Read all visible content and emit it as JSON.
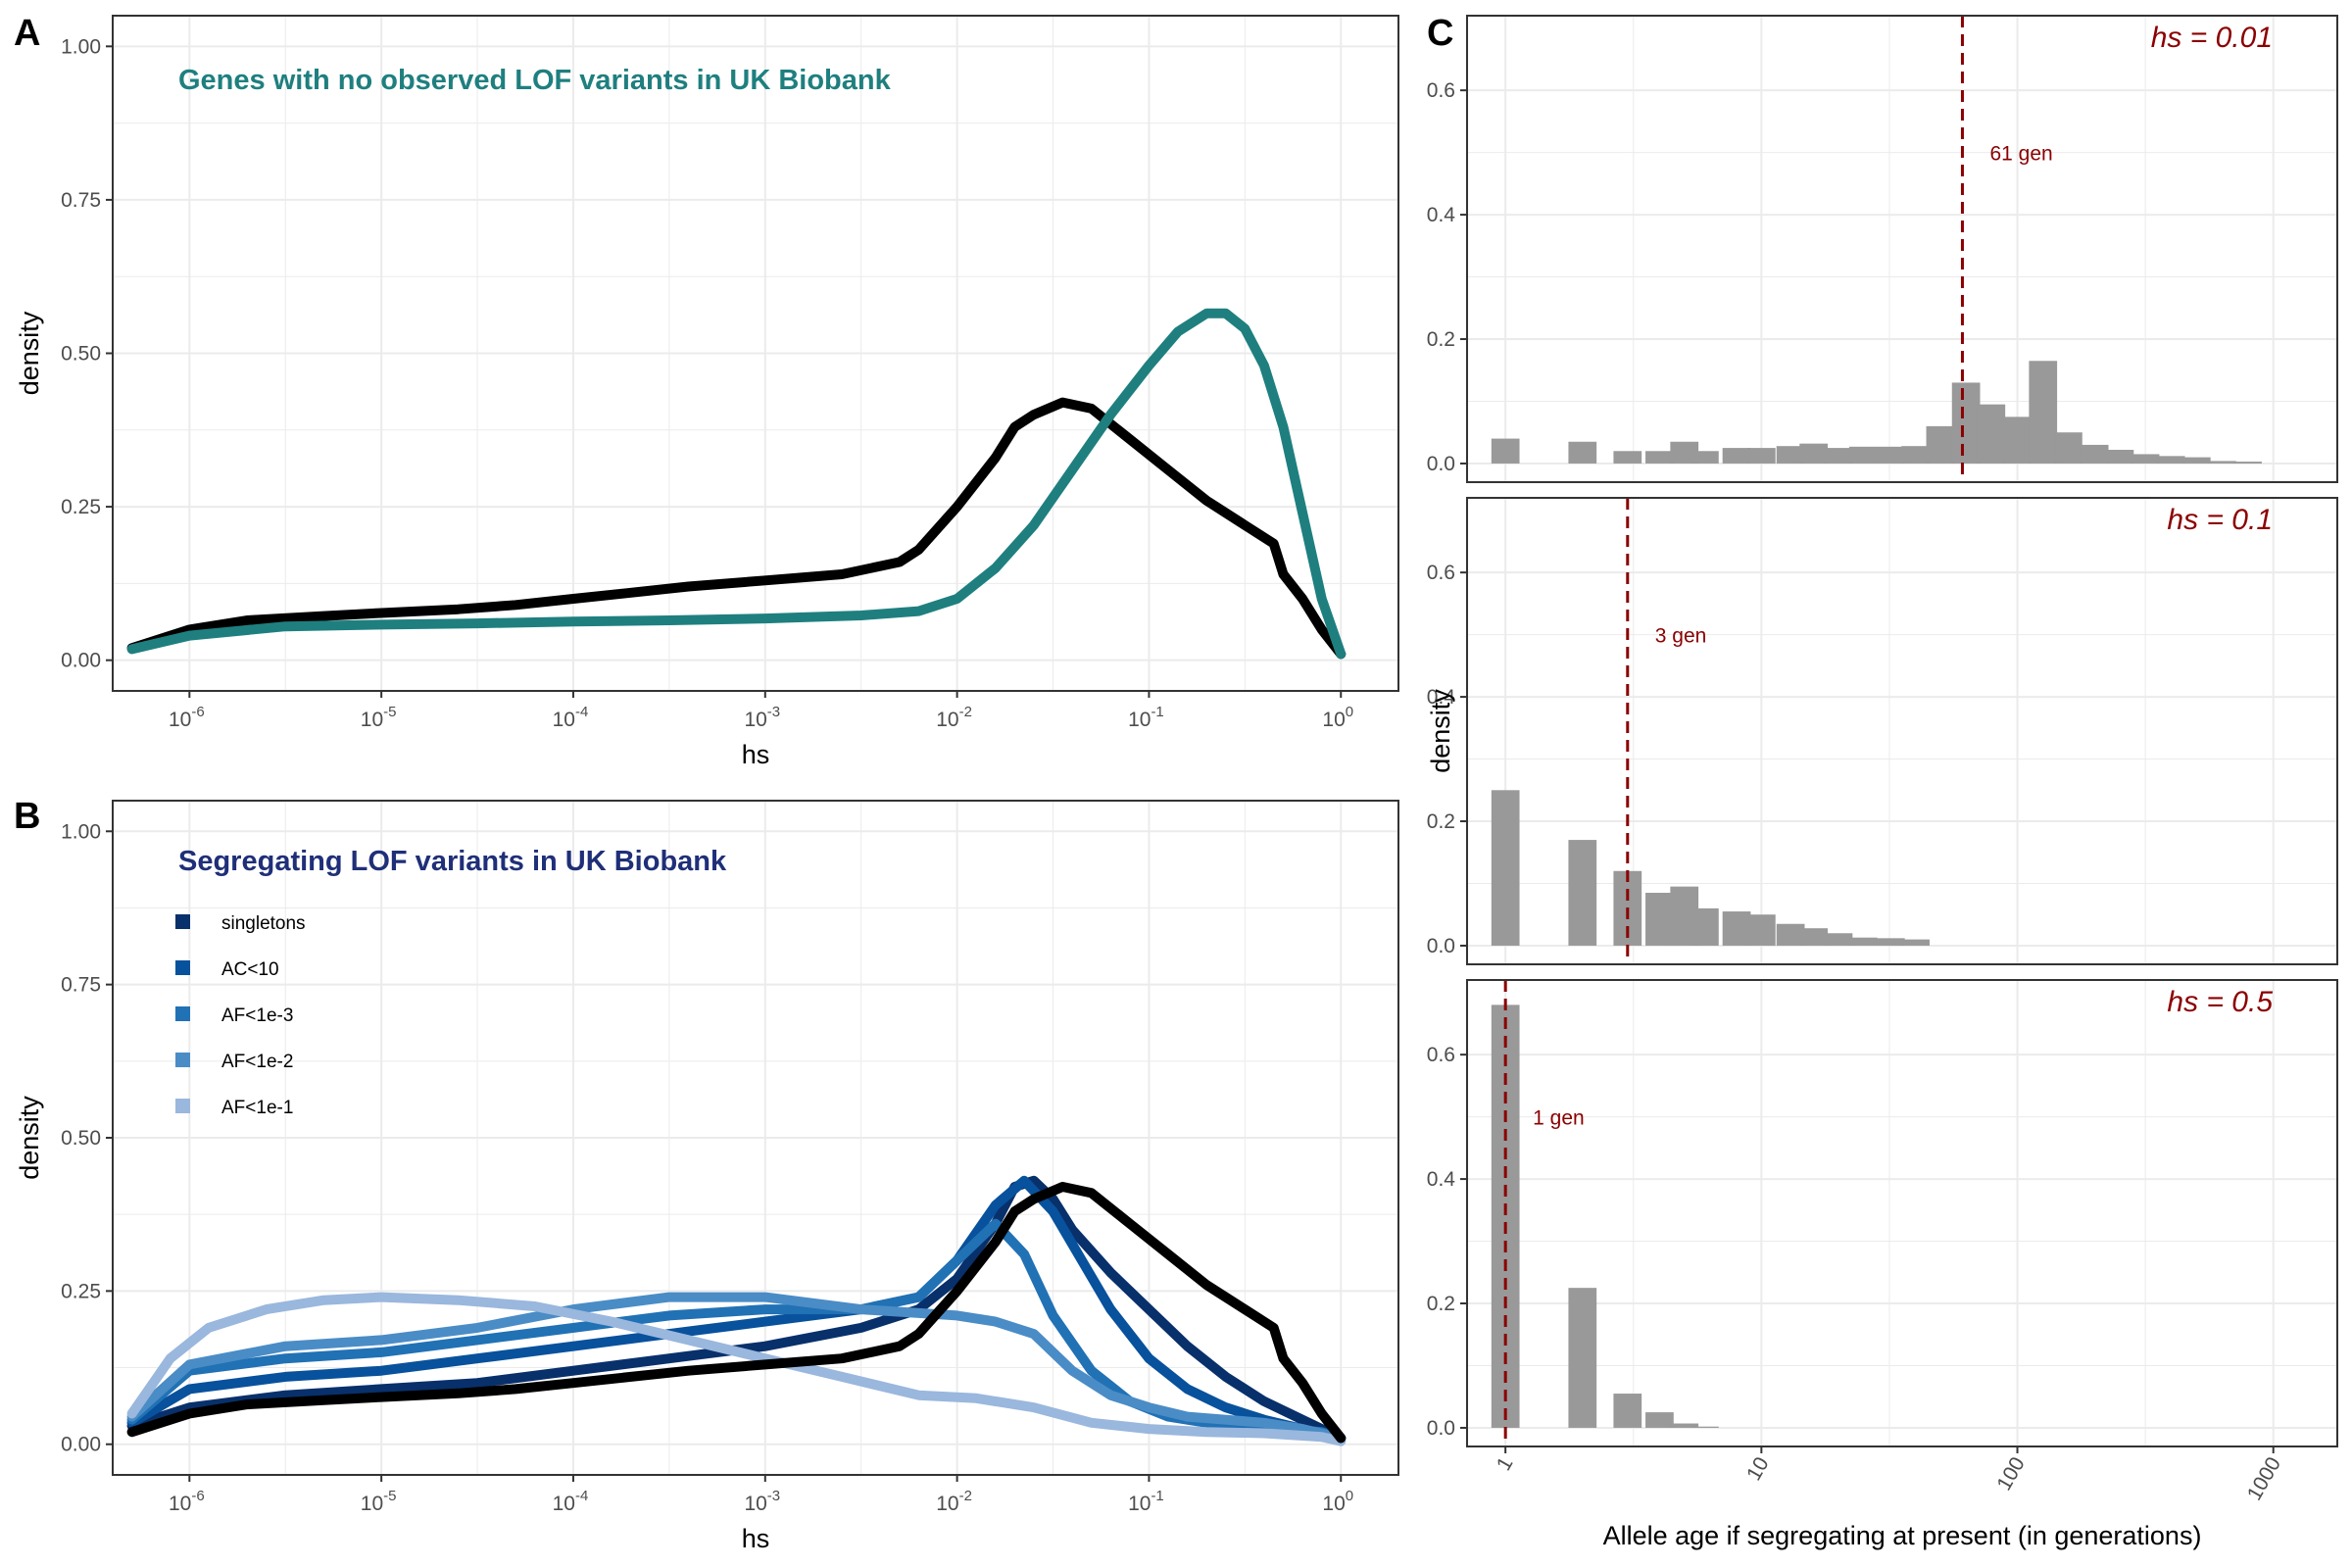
{
  "colors": {
    "black": "#000000",
    "teal": "#1f7f7f",
    "navy": "#1f2f78",
    "dark_red": "#8b0000",
    "bar_gray": "#999999",
    "grid": "#ebebeb",
    "blues": [
      "#08306b",
      "#08519c",
      "#2171b5",
      "#4a8cc6",
      "#9ab7dd"
    ]
  },
  "chart_data": [
    {
      "panel": "A",
      "type": "line",
      "annotation": "Genes with no observed LOF variants in UK Biobank",
      "xlabel": "hs",
      "ylabel": "density",
      "x_scale": "log10",
      "xlim_log10": [
        -6.4,
        0.3
      ],
      "x_ticks": [
        {
          "base": "10",
          "exp": "-6"
        },
        {
          "base": "10",
          "exp": "-5"
        },
        {
          "base": "10",
          "exp": "-4"
        },
        {
          "base": "10",
          "exp": "-3"
        },
        {
          "base": "10",
          "exp": "-2"
        },
        {
          "base": "10",
          "exp": "-1"
        },
        {
          "base": "10",
          "exp": "0"
        }
      ],
      "ylim": [
        -0.05,
        1.05
      ],
      "y_ticks": [
        "0.00",
        "0.25",
        "0.50",
        "0.75",
        "1.00"
      ],
      "grid": true,
      "series": [
        {
          "color": "black",
          "x_log10": [
            -6.3,
            -6.0,
            -5.7,
            -5.3,
            -5.0,
            -4.6,
            -4.3,
            -4.0,
            -3.7,
            -3.4,
            -3.0,
            -2.6,
            -2.3,
            -2.2,
            -2.0,
            -1.8,
            -1.7,
            -1.6,
            -1.45,
            -1.3,
            -1.1,
            -0.9,
            -0.7,
            -0.5,
            -0.35,
            -0.3,
            -0.2,
            -0.1,
            0.0
          ],
          "y": [
            0.02,
            0.05,
            0.065,
            0.072,
            0.077,
            0.083,
            0.09,
            0.1,
            0.11,
            0.12,
            0.13,
            0.14,
            0.16,
            0.18,
            0.25,
            0.33,
            0.38,
            0.4,
            0.42,
            0.41,
            0.36,
            0.31,
            0.26,
            0.22,
            0.19,
            0.14,
            0.1,
            0.05,
            0.01
          ]
        },
        {
          "color": "teal",
          "x_log10": [
            -6.3,
            -6.0,
            -5.5,
            -5.0,
            -4.5,
            -4.0,
            -3.5,
            -3.0,
            -2.5,
            -2.2,
            -2.0,
            -1.8,
            -1.6,
            -1.4,
            -1.2,
            -1.0,
            -0.85,
            -0.7,
            -0.6,
            -0.5,
            -0.4,
            -0.3,
            -0.2,
            -0.1,
            0.0
          ],
          "y": [
            0.018,
            0.04,
            0.055,
            0.058,
            0.06,
            0.063,
            0.065,
            0.068,
            0.073,
            0.08,
            0.1,
            0.15,
            0.22,
            0.31,
            0.4,
            0.48,
            0.535,
            0.565,
            0.565,
            0.54,
            0.48,
            0.38,
            0.24,
            0.1,
            0.01
          ]
        }
      ]
    },
    {
      "panel": "B",
      "type": "line",
      "annotation": "Segregating LOF variants in UK Biobank",
      "xlabel": "hs",
      "ylabel": "density",
      "x_scale": "log10",
      "xlim_log10": [
        -6.4,
        0.3
      ],
      "x_ticks": [
        {
          "base": "10",
          "exp": "-6"
        },
        {
          "base": "10",
          "exp": "-5"
        },
        {
          "base": "10",
          "exp": "-4"
        },
        {
          "base": "10",
          "exp": "-3"
        },
        {
          "base": "10",
          "exp": "-2"
        },
        {
          "base": "10",
          "exp": "-1"
        },
        {
          "base": "10",
          "exp": "0"
        }
      ],
      "ylim": [
        -0.05,
        1.05
      ],
      "y_ticks": [
        "0.00",
        "0.25",
        "0.50",
        "0.75",
        "1.00"
      ],
      "grid": true,
      "legend_position": "top-left",
      "legend": [
        "singletons",
        "AC<10",
        "AF<1e-3",
        "AF<1e-2",
        "AF<1e-1"
      ],
      "series": [
        {
          "name": "singletons",
          "color": "#08306b",
          "x_log10": [
            -6.3,
            -6.0,
            -5.5,
            -5.0,
            -4.5,
            -4.0,
            -3.5,
            -3.0,
            -2.5,
            -2.2,
            -2.0,
            -1.8,
            -1.7,
            -1.6,
            -1.5,
            -1.4,
            -1.2,
            -1.0,
            -0.8,
            -0.6,
            -0.4,
            -0.2,
            0.0
          ],
          "y": [
            0.03,
            0.06,
            0.08,
            0.09,
            0.1,
            0.12,
            0.14,
            0.16,
            0.19,
            0.22,
            0.27,
            0.36,
            0.42,
            0.43,
            0.4,
            0.35,
            0.28,
            0.22,
            0.16,
            0.11,
            0.07,
            0.04,
            0.01
          ]
        },
        {
          "name": "AC<10",
          "color": "#08519c",
          "x_log10": [
            -6.3,
            -6.0,
            -5.5,
            -5.0,
            -4.5,
            -4.0,
            -3.5,
            -3.0,
            -2.5,
            -2.2,
            -2.0,
            -1.8,
            -1.65,
            -1.5,
            -1.35,
            -1.2,
            -1.0,
            -0.8,
            -0.6,
            -0.4,
            -0.2,
            0.0
          ],
          "y": [
            0.035,
            0.09,
            0.11,
            0.12,
            0.14,
            0.16,
            0.18,
            0.2,
            0.22,
            0.24,
            0.3,
            0.39,
            0.43,
            0.38,
            0.3,
            0.22,
            0.14,
            0.09,
            0.06,
            0.04,
            0.025,
            0.01
          ]
        },
        {
          "name": "AF<1e-3",
          "color": "#2171b5",
          "x_log10": [
            -6.3,
            -6.0,
            -5.5,
            -5.0,
            -4.5,
            -4.0,
            -3.5,
            -3.0,
            -2.5,
            -2.2,
            -2.0,
            -1.8,
            -1.65,
            -1.5,
            -1.3,
            -1.1,
            -0.9,
            -0.7,
            -0.5,
            -0.3,
            -0.1,
            0.0
          ],
          "y": [
            0.04,
            0.12,
            0.14,
            0.15,
            0.17,
            0.19,
            0.21,
            0.22,
            0.22,
            0.24,
            0.3,
            0.36,
            0.31,
            0.21,
            0.12,
            0.07,
            0.045,
            0.035,
            0.03,
            0.025,
            0.02,
            0.01
          ]
        },
        {
          "name": "AF<1e-2",
          "color": "#4a8cc6",
          "x_log10": [
            -6.3,
            -6.0,
            -5.5,
            -5.0,
            -4.5,
            -4.0,
            -3.5,
            -3.0,
            -2.5,
            -2.0,
            -1.8,
            -1.6,
            -1.4,
            -1.2,
            -1.0,
            -0.8,
            -0.6,
            -0.4,
            -0.2,
            0.0
          ],
          "y": [
            0.045,
            0.13,
            0.16,
            0.17,
            0.19,
            0.22,
            0.24,
            0.24,
            0.22,
            0.21,
            0.2,
            0.18,
            0.12,
            0.08,
            0.06,
            0.045,
            0.04,
            0.035,
            0.025,
            0.01
          ]
        },
        {
          "name": "AF<1e-1",
          "color": "#9ab7dd",
          "x_log10": [
            -6.3,
            -6.1,
            -5.9,
            -5.6,
            -5.3,
            -5.0,
            -4.6,
            -4.2,
            -3.8,
            -3.4,
            -3.0,
            -2.6,
            -2.2,
            -1.9,
            -1.6,
            -1.3,
            -1.0,
            -0.7,
            -0.4,
            -0.1,
            0.0
          ],
          "y": [
            0.05,
            0.14,
            0.19,
            0.22,
            0.235,
            0.24,
            0.235,
            0.225,
            0.2,
            0.17,
            0.14,
            0.11,
            0.08,
            0.075,
            0.06,
            0.035,
            0.025,
            0.02,
            0.018,
            0.012,
            0.005
          ]
        },
        {
          "name": "",
          "color": "black",
          "x_log10": [
            -6.3,
            -6.0,
            -5.7,
            -5.3,
            -5.0,
            -4.6,
            -4.3,
            -4.0,
            -3.7,
            -3.4,
            -3.0,
            -2.6,
            -2.3,
            -2.2,
            -2.0,
            -1.8,
            -1.7,
            -1.6,
            -1.45,
            -1.3,
            -1.1,
            -0.9,
            -0.7,
            -0.5,
            -0.35,
            -0.3,
            -0.2,
            -0.1,
            0.0
          ],
          "y": [
            0.02,
            0.05,
            0.065,
            0.072,
            0.077,
            0.083,
            0.09,
            0.1,
            0.11,
            0.12,
            0.13,
            0.14,
            0.16,
            0.18,
            0.25,
            0.33,
            0.38,
            0.4,
            0.42,
            0.41,
            0.36,
            0.31,
            0.26,
            0.22,
            0.19,
            0.14,
            0.1,
            0.05,
            0.01
          ]
        }
      ]
    },
    {
      "panel": "C",
      "type": "bar",
      "subtype": "histogram-facets",
      "xlabel": "Allele age if segregating at present (in generations)",
      "ylabel": "density",
      "x_scale": "log10",
      "xlim_log10": [
        -0.15,
        3.25
      ],
      "x_ticks": [
        {
          "value": 1,
          "label": "1"
        },
        {
          "value": 10,
          "label": "10"
        },
        {
          "value": 100,
          "label": "100"
        },
        {
          "value": 1000,
          "label": "1000"
        }
      ],
      "ylim": [
        -0.03,
        0.72
      ],
      "y_ticks": [
        "0.0",
        "0.2",
        "0.4",
        "0.6"
      ],
      "grid": true,
      "bin_width_log10": 0.11,
      "facets": [
        {
          "label": "hs = 0.01",
          "vline": 61,
          "vline_label": "61 gen",
          "bins": [
            {
              "x": 1,
              "y": 0.04
            },
            {
              "x": 2,
              "y": 0.035
            },
            {
              "x": 3,
              "y": 0.02
            },
            {
              "x": 4,
              "y": 0.02
            },
            {
              "x": 5,
              "y": 0.035
            },
            {
              "x": 6,
              "y": 0.02
            },
            {
              "x": 8,
              "y": 0.025
            },
            {
              "x": 10,
              "y": 0.025
            },
            {
              "x": 13,
              "y": 0.028
            },
            {
              "x": 16,
              "y": 0.032
            },
            {
              "x": 20,
              "y": 0.025
            },
            {
              "x": 25,
              "y": 0.027
            },
            {
              "x": 32,
              "y": 0.027
            },
            {
              "x": 40,
              "y": 0.028
            },
            {
              "x": 50,
              "y": 0.06
            },
            {
              "x": 63,
              "y": 0.13
            },
            {
              "x": 79,
              "y": 0.095
            },
            {
              "x": 100,
              "y": 0.075
            },
            {
              "x": 126,
              "y": 0.165
            },
            {
              "x": 158,
              "y": 0.05
            },
            {
              "x": 200,
              "y": 0.03
            },
            {
              "x": 251,
              "y": 0.022
            },
            {
              "x": 316,
              "y": 0.015
            },
            {
              "x": 398,
              "y": 0.012
            },
            {
              "x": 501,
              "y": 0.01
            },
            {
              "x": 631,
              "y": 0.004
            },
            {
              "x": 794,
              "y": 0.003
            }
          ]
        },
        {
          "label": "hs = 0.1",
          "vline": 3,
          "vline_label": "3 gen",
          "bins": [
            {
              "x": 1,
              "y": 0.25
            },
            {
              "x": 2,
              "y": 0.17
            },
            {
              "x": 3,
              "y": 0.12
            },
            {
              "x": 4,
              "y": 0.085
            },
            {
              "x": 5,
              "y": 0.095
            },
            {
              "x": 6,
              "y": 0.06
            },
            {
              "x": 8,
              "y": 0.055
            },
            {
              "x": 10,
              "y": 0.05
            },
            {
              "x": 13,
              "y": 0.035
            },
            {
              "x": 16,
              "y": 0.028
            },
            {
              "x": 20,
              "y": 0.02
            },
            {
              "x": 25,
              "y": 0.013
            },
            {
              "x": 32,
              "y": 0.012
            },
            {
              "x": 40,
              "y": 0.01
            }
          ]
        },
        {
          "label": "hs = 0.5",
          "vline": 1,
          "vline_label": "1 gen",
          "bins": [
            {
              "x": 1,
              "y": 0.68
            },
            {
              "x": 2,
              "y": 0.225
            },
            {
              "x": 3,
              "y": 0.055
            },
            {
              "x": 4,
              "y": 0.025
            },
            {
              "x": 5,
              "y": 0.007
            },
            {
              "x": 6,
              "y": 0.002
            }
          ]
        }
      ]
    }
  ]
}
